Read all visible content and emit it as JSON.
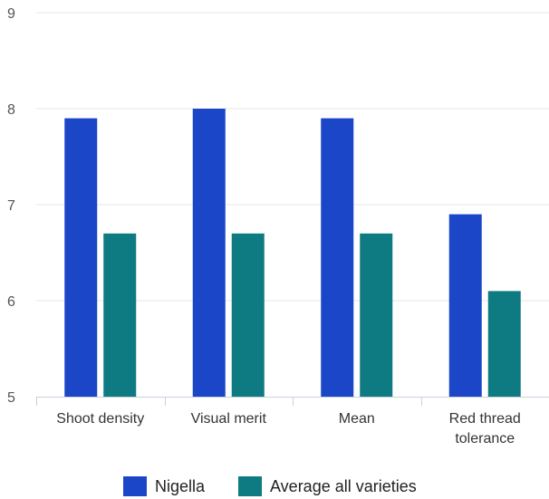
{
  "chart_data": {
    "type": "bar",
    "categories": [
      [
        "Shoot density"
      ],
      [
        "Visual merit"
      ],
      [
        "Mean"
      ],
      [
        "Red thread",
        "tolerance"
      ]
    ],
    "series": [
      {
        "name": "Nigella",
        "color": "#1b46c8",
        "values": [
          7.9,
          8.0,
          7.9,
          6.9
        ]
      },
      {
        "name": "Average all varieties",
        "color": "#0e7a82",
        "values": [
          6.7,
          6.7,
          6.7,
          6.1
        ]
      }
    ],
    "ylim": [
      5,
      9
    ],
    "yticks": [
      5,
      6,
      7,
      8,
      9
    ],
    "grid": true,
    "legend_position": "bottom"
  }
}
